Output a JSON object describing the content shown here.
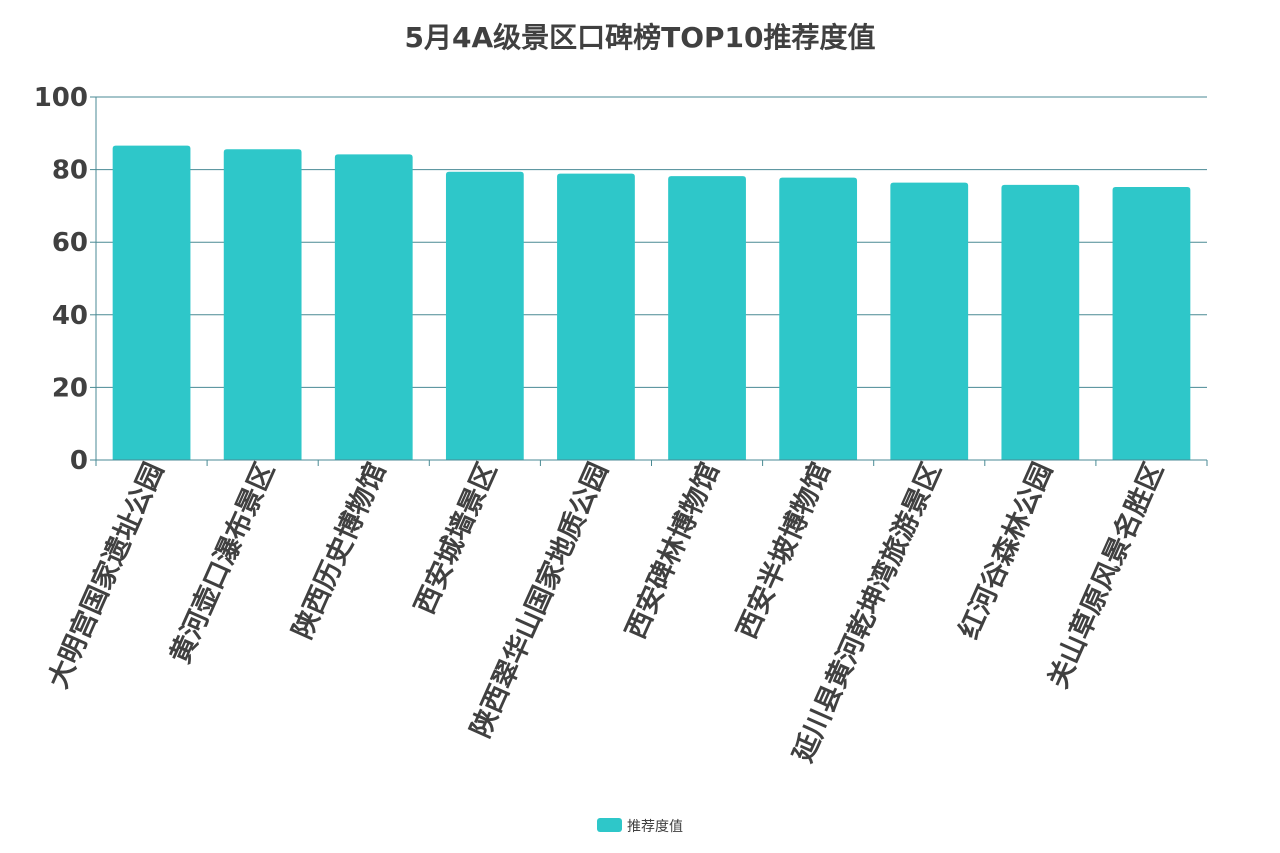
{
  "chart_data": {
    "type": "bar",
    "title": "5月4A级景区口碑榜TOP10推荐度值",
    "categories": [
      "大明宫国家遗址公园",
      "黄河壶口瀑布景区",
      "陕西历史博物馆",
      "西安城墙景区",
      "陕西翠华山国家地质公园",
      "西安碑林博物馆",
      "西安半坡博物馆",
      "延川县黄河乾坤湾旅游景区",
      "红河谷森林公园",
      "关山草原风景名胜区"
    ],
    "series": [
      {
        "name": "推荐度值",
        "values": [
          86.6,
          85.6,
          84.2,
          79.4,
          78.9,
          78.2,
          77.8,
          76.4,
          75.8,
          75.2
        ]
      }
    ],
    "ylim": [
      0,
      100
    ],
    "yticks": [
      "0",
      "20",
      "40",
      "60",
      "80",
      "100"
    ],
    "grid": true,
    "legend_position": "bottom",
    "colors": {
      "bar": "#2EC7C9",
      "grid": "#4a8a94",
      "axis": "#4a8a94",
      "text": "#404040"
    }
  }
}
